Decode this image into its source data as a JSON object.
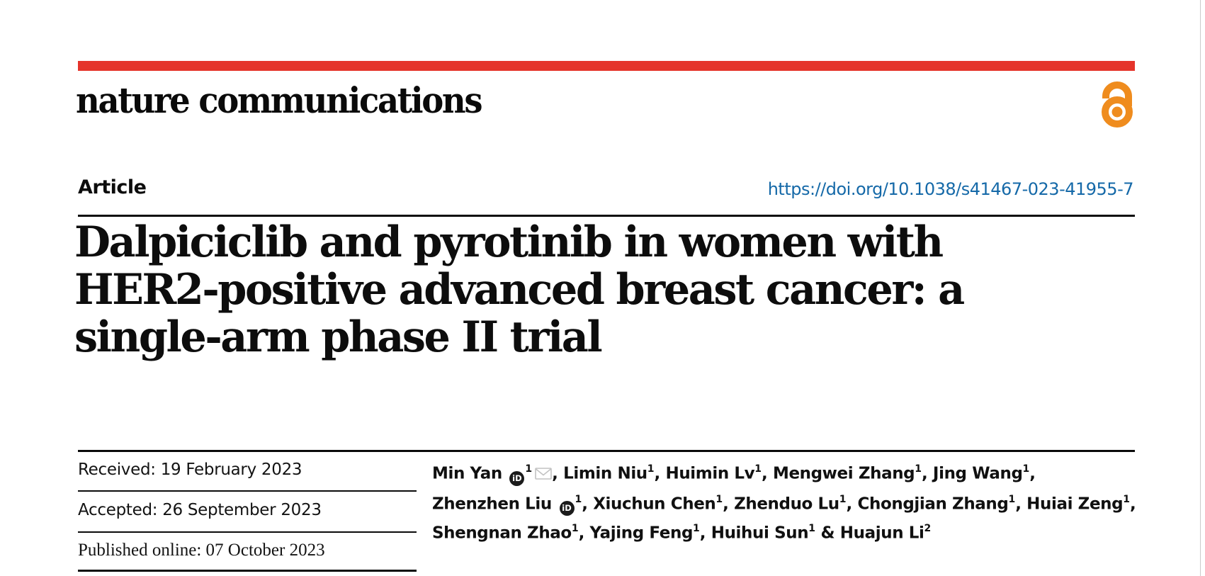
{
  "journal": {
    "logo_text": "nature communications"
  },
  "colors": {
    "brand_red": "#e5342b",
    "open_access_orange": "#ef8c1e",
    "link_blue": "#1569a8",
    "text_black": "#0d0d0d",
    "envelope_gray": "#c2c2c2"
  },
  "header": {
    "article_label": "Article",
    "doi_link": "https://doi.org/10.1038/s41467-023-41955-7"
  },
  "title": {
    "text": "Dalpiciclib and pyrotinib in women with\nHER2-positive advanced breast cancer: a\nsingle-arm phase II trial"
  },
  "dates": {
    "received": "Received: 19 February 2023",
    "accepted": "Accepted: 26 September 2023",
    "published": "Published online: 07 October 2023"
  },
  "icons": {
    "open_access": "open-access-padlock",
    "orcid_label": "iD",
    "email": "envelope"
  },
  "authors": {
    "lines": [
      [
        {
          "t": "text",
          "v": "Min Yan "
        },
        {
          "t": "orcid"
        },
        {
          "t": "sup",
          "v": "1"
        },
        {
          "t": "email"
        },
        {
          "t": "text",
          "v": ", Limin Niu"
        },
        {
          "t": "sup",
          "v": "1"
        },
        {
          "t": "text",
          "v": ", Huimin Lv"
        },
        {
          "t": "sup",
          "v": "1"
        },
        {
          "t": "text",
          "v": ", Mengwei Zhang"
        },
        {
          "t": "sup",
          "v": "1"
        },
        {
          "t": "text",
          "v": ", Jing Wang"
        },
        {
          "t": "sup",
          "v": "1"
        },
        {
          "t": "text",
          "v": ","
        }
      ],
      [
        {
          "t": "text",
          "v": "Zhenzhen Liu "
        },
        {
          "t": "orcid"
        },
        {
          "t": "sup",
          "v": "1"
        },
        {
          "t": "text",
          "v": ", Xiuchun Chen"
        },
        {
          "t": "sup",
          "v": "1"
        },
        {
          "t": "text",
          "v": ", Zhenduo Lu"
        },
        {
          "t": "sup",
          "v": "1"
        },
        {
          "t": "text",
          "v": ", Chongjian Zhang"
        },
        {
          "t": "sup",
          "v": "1"
        },
        {
          "t": "text",
          "v": ", Huiai Zeng"
        },
        {
          "t": "sup",
          "v": "1"
        },
        {
          "t": "text",
          "v": ","
        }
      ],
      [
        {
          "t": "text",
          "v": "Shengnan Zhao"
        },
        {
          "t": "sup",
          "v": "1"
        },
        {
          "t": "text",
          "v": ", Yajing Feng"
        },
        {
          "t": "sup",
          "v": "1"
        },
        {
          "t": "text",
          "v": ", Huihui Sun"
        },
        {
          "t": "sup",
          "v": "1"
        },
        {
          "t": "text",
          "v": " & Huajun Li"
        },
        {
          "t": "sup",
          "v": "2"
        }
      ]
    ]
  }
}
